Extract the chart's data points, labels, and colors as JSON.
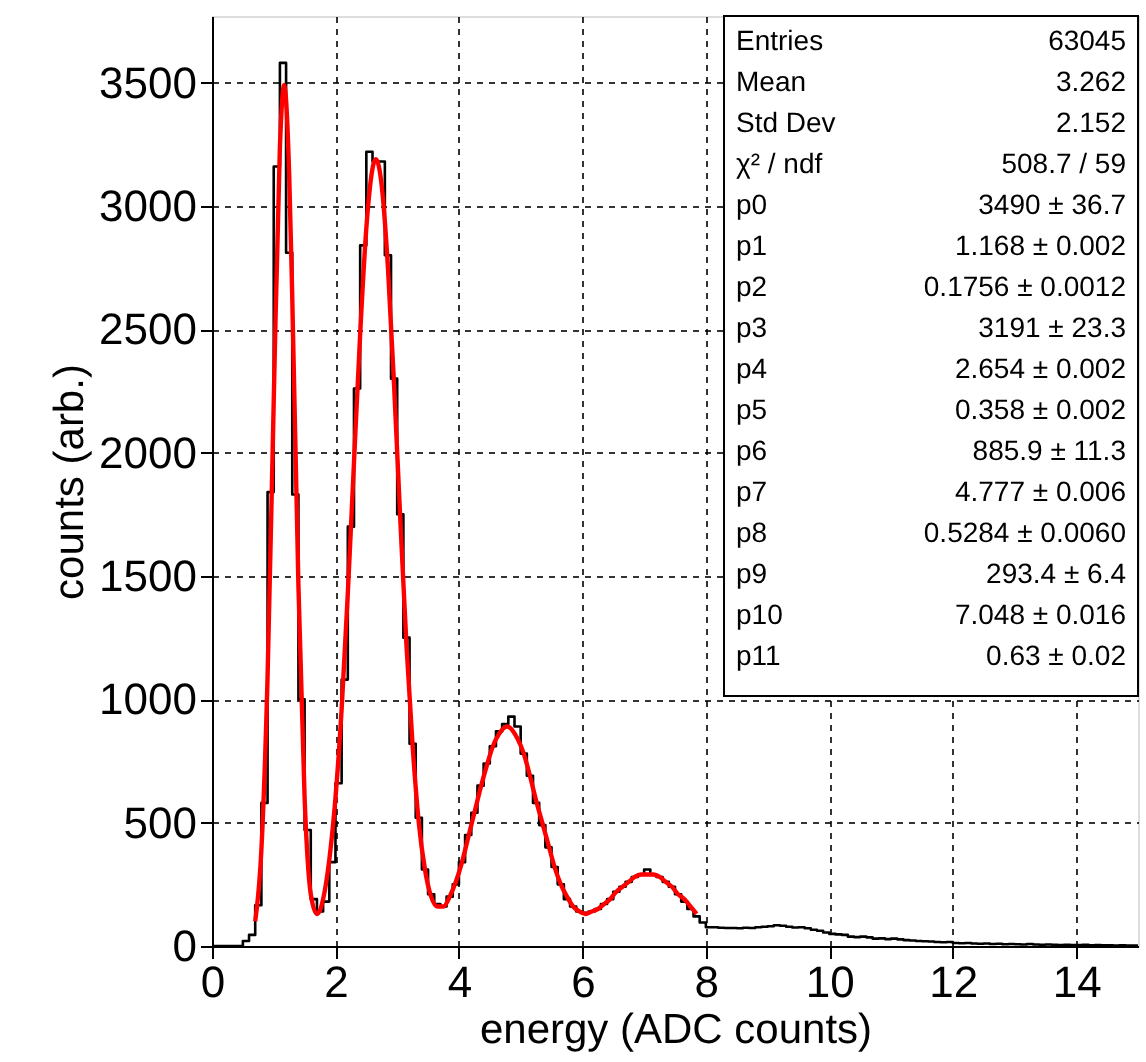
{
  "chart_data": {
    "type": "histogram",
    "xlabel": "energy (ADC counts)",
    "ylabel": "counts (arb.)",
    "xlim": [
      0,
      15
    ],
    "xticks": [
      0,
      2,
      4,
      6,
      8,
      10,
      12,
      14
    ],
    "ylim": [
      0,
      3770
    ],
    "yticks": [
      0,
      500,
      1000,
      1500,
      2000,
      2500,
      3000,
      3500
    ],
    "grid": true,
    "marker": "none",
    "series": [
      {
        "color": "#000000",
        "bins": [
          0,
          0.1,
          0.2,
          0.3,
          0.4,
          0.5,
          0.6,
          0.7,
          0.8,
          0.9,
          1.0,
          1.1,
          1.2,
          1.3,
          1.4,
          1.5,
          1.6,
          1.7,
          1.8,
          1.9,
          2.0,
          2.1,
          2.2,
          2.3,
          2.4,
          2.5,
          2.6,
          2.7,
          2.8,
          2.9,
          3.0,
          3.1,
          3.2,
          3.3,
          3.4,
          3.5,
          3.6,
          3.7,
          3.8,
          3.9,
          4.0,
          4.1,
          4.2,
          4.3,
          4.4,
          4.5,
          4.6,
          4.7,
          4.8,
          4.9,
          5.0,
          5.1,
          5.2,
          5.3,
          5.4,
          5.5,
          5.6,
          5.7,
          5.8,
          5.9,
          6.0,
          6.1,
          6.2,
          6.3,
          6.4,
          6.5,
          6.6,
          6.7,
          6.8,
          6.9,
          7.0,
          7.1,
          7.2,
          7.3,
          7.4,
          7.5,
          7.6,
          7.7,
          7.8,
          7.9,
          8.0,
          8.1,
          8.2,
          8.3,
          8.4,
          8.5,
          8.6,
          8.7,
          8.8,
          8.9,
          9.0,
          9.1,
          9.2,
          9.3,
          9.4,
          9.5,
          9.6,
          9.7,
          9.8,
          9.9,
          10.0,
          10.1,
          10.2,
          10.3,
          10.4,
          10.5,
          10.6,
          10.7,
          10.8,
          10.9,
          11.0,
          11.1,
          11.2,
          11.3,
          11.4,
          11.5,
          11.6,
          11.7,
          11.8,
          11.9,
          12.0,
          12.1,
          12.2,
          12.3,
          12.4,
          12.5,
          12.6,
          12.7,
          12.8,
          12.9,
          13.0,
          13.1,
          13.2,
          13.3,
          13.4,
          13.5,
          13.6,
          13.7,
          13.8,
          13.9,
          14.0,
          14.1,
          14.2,
          14.3,
          14.4,
          14.5,
          14.6,
          14.7,
          14.8,
          14.9,
          15.0
        ],
        "values": [
          0,
          0,
          0,
          0,
          0,
          20,
          45,
          165,
          580,
          1840,
          3160,
          3580,
          2810,
          1830,
          1000,
          470,
          190,
          140,
          180,
          340,
          660,
          1080,
          1700,
          2260,
          2840,
          3220,
          3180,
          3180,
          2800,
          2300,
          1750,
          1250,
          820,
          520,
          310,
          210,
          170,
          160,
          200,
          250,
          340,
          450,
          540,
          650,
          740,
          810,
          870,
          900,
          930,
          890,
          780,
          690,
          580,
          490,
          400,
          320,
          250,
          190,
          160,
          140,
          135,
          140,
          150,
          170,
          190,
          220,
          240,
          260,
          280,
          290,
          310,
          290,
          280,
          260,
          240,
          210,
          180,
          150,
          120,
          95,
          76,
          76,
          74,
          73,
          73,
          72,
          74,
          73,
          76,
          78,
          80,
          84,
          82,
          78,
          75,
          76,
          72,
          66,
          62,
          55,
          49,
          47,
          45,
          38,
          36,
          38,
          35,
          30,
          31,
          28,
          30,
          27,
          24,
          22,
          20,
          19,
          18,
          16,
          15,
          16,
          12,
          11,
          12,
          10,
          9,
          10,
          8,
          9,
          7,
          8,
          7,
          6,
          8,
          6,
          5,
          6,
          5,
          4,
          5,
          4,
          4,
          5,
          3,
          4,
          3,
          3,
          2,
          3,
          2,
          2
        ]
      },
      {
        "type": "line",
        "color": "#ff0000",
        "line_style": "solid",
        "x": [
          0.7,
          0.8,
          0.9,
          1.0,
          1.1,
          1.168,
          1.25,
          1.3,
          1.4,
          1.5,
          1.6,
          1.7,
          1.75,
          1.8,
          1.9,
          2.0,
          2.1,
          2.2,
          2.3,
          2.4,
          2.5,
          2.654,
          2.75,
          2.85,
          2.95,
          3.05,
          3.15,
          3.25,
          3.35,
          3.45,
          3.55,
          3.65,
          3.75,
          3.85,
          3.95,
          4.05,
          4.15,
          4.25,
          4.35,
          4.45,
          4.55,
          4.65,
          4.777,
          4.95,
          5.05,
          5.15,
          5.25,
          5.35,
          5.45,
          5.55,
          5.65,
          5.75,
          5.85,
          5.95,
          6.05,
          6.15,
          6.25,
          6.35,
          6.45,
          6.55,
          6.65,
          6.75,
          6.85,
          6.95,
          7.048,
          7.15,
          7.25,
          7.35,
          7.45,
          7.55,
          7.65,
          7.75,
          7.85
        ],
        "values": [
          100,
          390,
          1090,
          2210,
          3240,
          3490,
          3130,
          2630,
          1460,
          600,
          210,
          130,
          145,
          190,
          350,
          600,
          960,
          1430,
          1960,
          2480,
          2910,
          3190,
          3080,
          2750,
          2270,
          1730,
          1220,
          810,
          500,
          310,
          200,
          160,
          160,
          200,
          260,
          340,
          440,
          540,
          640,
          730,
          810,
          860,
          890,
          840,
          780,
          690,
          590,
          500,
          410,
          320,
          250,
          200,
          160,
          140,
          130,
          140,
          150,
          170,
          190,
          220,
          240,
          260,
          280,
          290,
          290,
          290,
          280,
          260,
          240,
          210,
          190,
          160,
          130
        ]
      }
    ],
    "annotations": [
      "Entries",
      "63045",
      "Mean",
      "3.262",
      "Std Dev",
      "2.152",
      "χ² / ndf",
      "508.7 / 59",
      "p0",
      "3490 ± 36.7",
      "p1",
      "1.168 ± 0.002",
      "p2",
      "0.1756 ± 0.0012",
      "p3",
      "3191 ± 23.3",
      "p4",
      "2.654 ± 0.002",
      "p5",
      "0.358 ± 0.002",
      "p6",
      "885.9 ± 11.3",
      "p7",
      "4.777 ± 0.006",
      "p8",
      "0.5284 ± 0.0060",
      "p9",
      "293.4 ± 6.4",
      "p10",
      "7.048 ± 0.016",
      "p11",
      "0.63 ± 0.02"
    ]
  }
}
